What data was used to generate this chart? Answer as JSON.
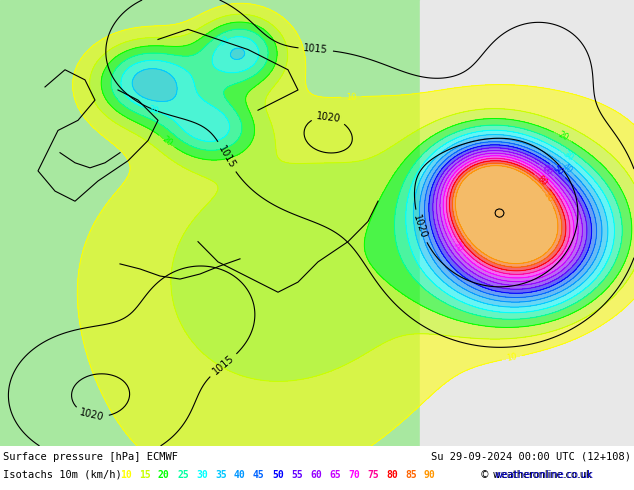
{
  "title_line1": "Surface pressure [hPa] ECMWF",
  "title_line2": "Isotachs 10m (km/h)",
  "date_str": "Su 29-09-2024 00:00 UTC (12+108)",
  "copyright": "© weatheronline.co.uk",
  "legend_values": [
    10,
    15,
    20,
    25,
    30,
    35,
    40,
    45,
    50,
    55,
    60,
    65,
    70,
    75,
    80,
    85,
    90
  ],
  "legend_colors": [
    "#ffff00",
    "#c8ff00",
    "#00ff00",
    "#00ffa0",
    "#00ffff",
    "#00c8ff",
    "#0096ff",
    "#0064ff",
    "#0000ff",
    "#6400ff",
    "#9600ff",
    "#c800ff",
    "#ff00ff",
    "#ff0096",
    "#ff0000",
    "#ff6400",
    "#ff9600"
  ],
  "bg_color_left": "#a8e8a0",
  "bg_color_right": "#e8e8e8",
  "fig_width": 6.34,
  "fig_height": 4.9,
  "dpi": 100
}
